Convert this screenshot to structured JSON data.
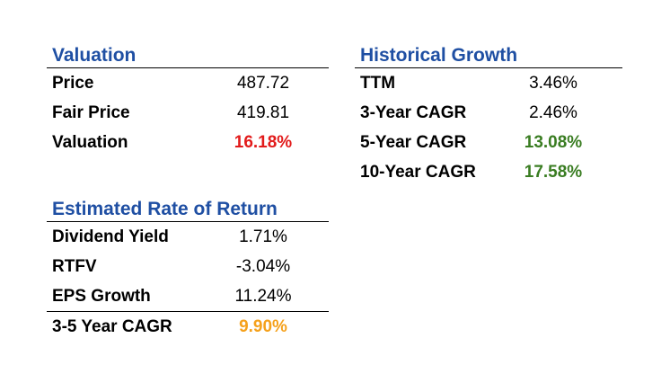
{
  "valuation": {
    "title": "Valuation",
    "rows": [
      {
        "label": "Price",
        "value": "487.72"
      },
      {
        "label": "Fair Price",
        "value": "419.81"
      },
      {
        "label": "Valuation",
        "value": "16.18%"
      }
    ]
  },
  "historical_growth": {
    "title": "Historical Growth",
    "rows": [
      {
        "label": "TTM",
        "value": "3.46%"
      },
      {
        "label": "3-Year CAGR",
        "value": "2.46%"
      },
      {
        "label": "5-Year CAGR",
        "value": "13.08%"
      },
      {
        "label": "10-Year CAGR",
        "value": "17.58%"
      }
    ]
  },
  "estimated_return": {
    "title": "Estimated Rate of Return",
    "rows": [
      {
        "label": "Dividend Yield",
        "value": "1.71%"
      },
      {
        "label": "RTFV",
        "value": "-3.04%"
      },
      {
        "label": "EPS Growth",
        "value": "11.24%"
      },
      {
        "label": "3-5 Year CAGR",
        "value": "9.90%"
      }
    ]
  },
  "colors": {
    "title_blue": "#1f4fa3",
    "negative_red": "#e21b1b",
    "positive_green": "#3a7d22",
    "highlight_orange": "#f5a11c"
  }
}
